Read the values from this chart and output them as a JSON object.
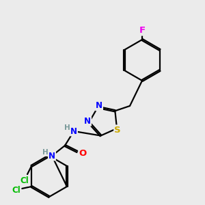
{
  "bg_color": "#ebebeb",
  "bond_color": "#000000",
  "bond_width": 1.6,
  "atom_colors": {
    "N": "#0000ff",
    "S": "#ccaa00",
    "O": "#ff0000",
    "Cl": "#00bb00",
    "F": "#ee00ee",
    "H": "#7a9a9a",
    "C": "#000000"
  },
  "font_size": 8.5,
  "fig_size": [
    3.0,
    3.0
  ],
  "dpi": 100
}
